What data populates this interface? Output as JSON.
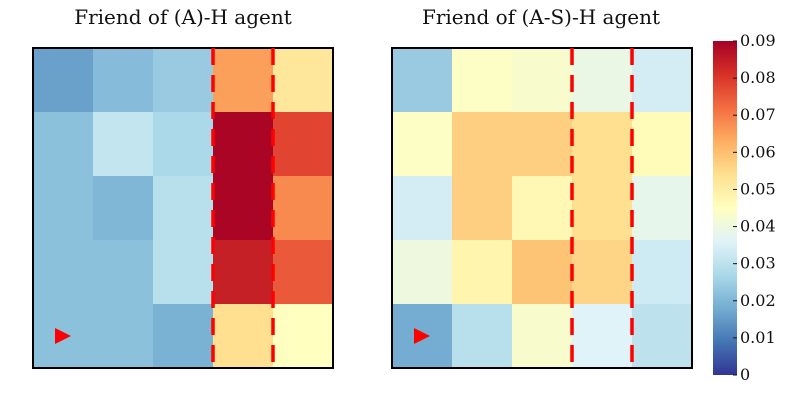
{
  "chart_data": [
    {
      "type": "heatmap",
      "title": "Friend of (A)-H agent",
      "rows": 5,
      "cols": 5,
      "values": [
        [
          0.016,
          0.021,
          0.024,
          0.065,
          0.052
        ],
        [
          0.022,
          0.031,
          0.027,
          0.089,
          0.078
        ],
        [
          0.022,
          0.02,
          0.029,
          0.089,
          0.068
        ],
        [
          0.022,
          0.022,
          0.029,
          0.084,
          0.075
        ],
        [
          0.022,
          0.022,
          0.019,
          0.054,
          0.045
        ]
      ],
      "agent_marker": {
        "row": 4,
        "col": 0,
        "shape": "right-pointing triangle",
        "color": "#ff0000"
      },
      "dashed_boundaries_between_columns": [
        [
          2,
          3
        ],
        [
          3,
          4
        ]
      ]
    },
    {
      "type": "heatmap",
      "title": "Friend of (A-S)-H agent",
      "rows": 5,
      "cols": 5,
      "values": [
        [
          0.024,
          0.044,
          0.043,
          0.039,
          0.034
        ],
        [
          0.044,
          0.057,
          0.057,
          0.054,
          0.046
        ],
        [
          0.034,
          0.057,
          0.047,
          0.054,
          0.038
        ],
        [
          0.04,
          0.048,
          0.059,
          0.056,
          0.033
        ],
        [
          0.018,
          0.029,
          0.043,
          0.036,
          0.03
        ]
      ],
      "agent_marker": {
        "row": 4,
        "col": 0,
        "shape": "right-pointing triangle",
        "color": "#ff0000"
      },
      "dashed_boundaries_between_columns": [
        [
          2,
          3
        ],
        [
          3,
          4
        ]
      ]
    }
  ],
  "colorbar": {
    "colormap": "RdYlBu_r",
    "min": 0,
    "max": 0.09,
    "ticks": [
      "0",
      "0.01",
      "0.02",
      "0.03",
      "0.04",
      "0.05",
      "0.06",
      "0.07",
      "0.08",
      "0.09"
    ]
  },
  "colors": {
    "marker": "#ff0000",
    "divider": "#ff0000",
    "frame": "#000000"
  }
}
